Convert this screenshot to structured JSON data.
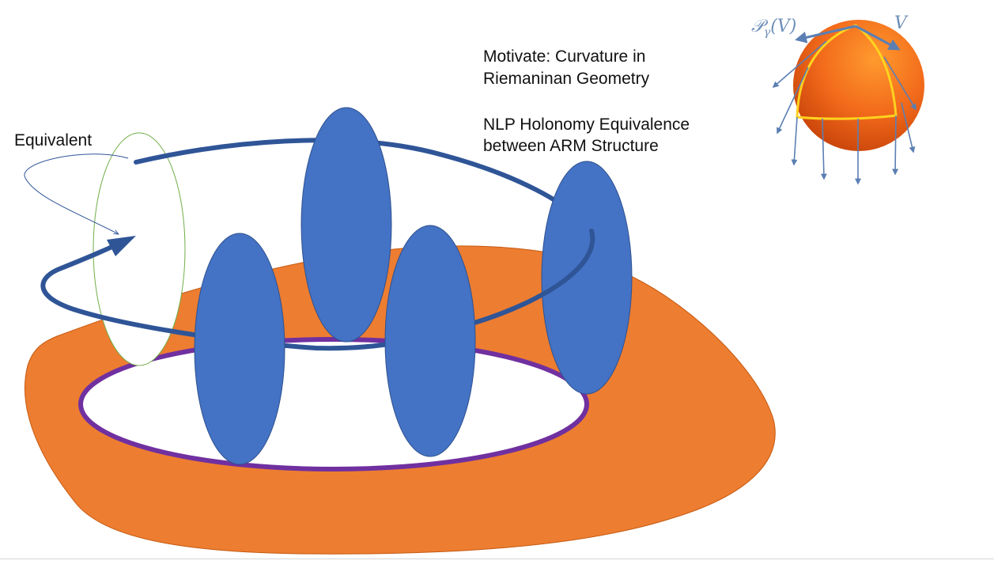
{
  "labels": {
    "equivalent": "Equivalent",
    "motivate_line1": "Motivate: Curvature in",
    "motivate_line2": "Riemaninan Geometry",
    "nlp_line1": "NLP Holonomy Equivalence",
    "nlp_line2": "between ARM Structure"
  },
  "sphere_labels": {
    "parallel_transport_script": "𝒫",
    "parallel_transport_sub": "γ",
    "parallel_transport_arg": "(V)",
    "vector": "V"
  },
  "colors": {
    "orange_region": "#ed7d31",
    "ellipse_blue": "#4472c4",
    "loop_path": "#2f5597",
    "purple_ring": "#7030a0",
    "green_outline": "#70ad47",
    "sphere_orange": "#f26a1b",
    "sphere_arc": "#ffd21f",
    "arrow_steel": "#5b7fb3"
  },
  "icons": {
    "sphere": "sphere-with-geodesic-triangle",
    "loop": "closed-loop-arrow"
  }
}
